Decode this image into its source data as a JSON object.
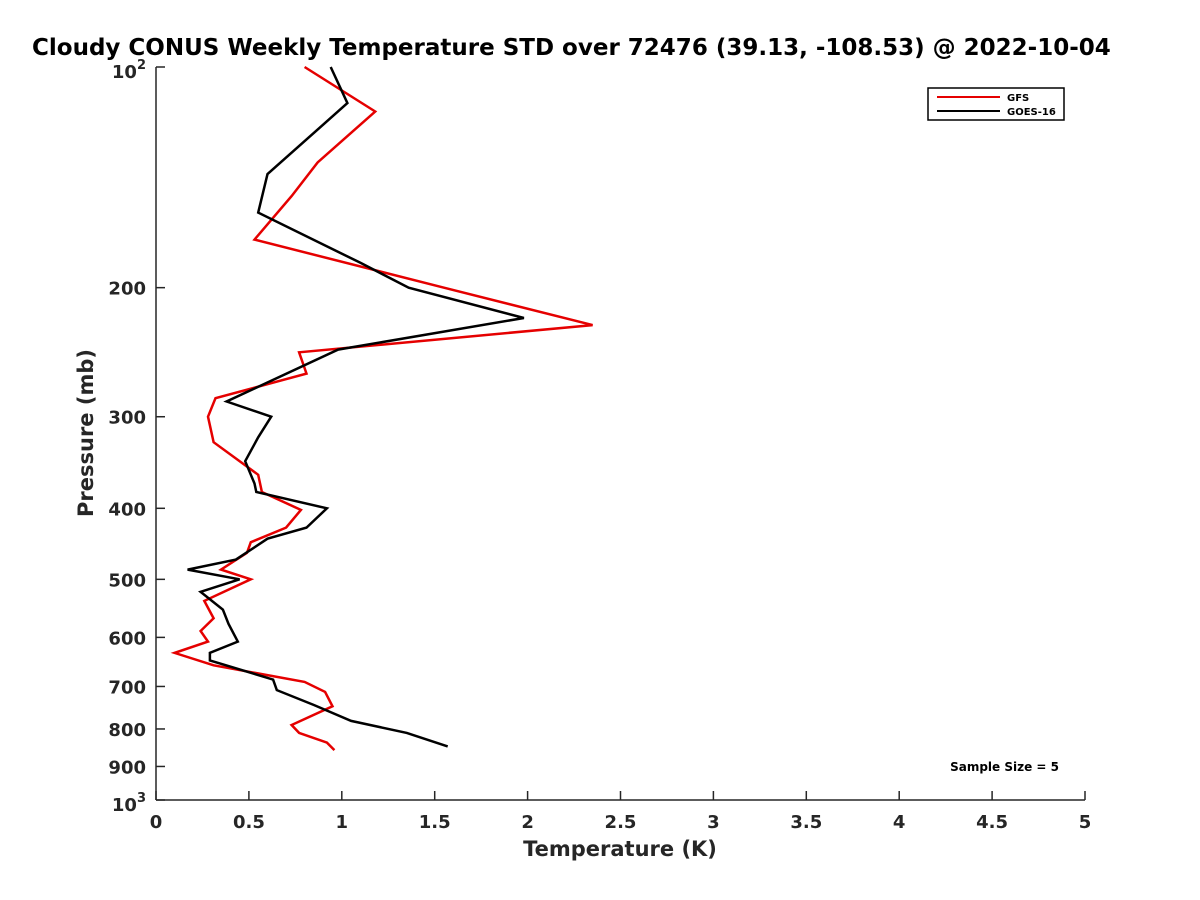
{
  "chart_data": {
    "type": "line",
    "title": "Cloudy CONUS Weekly Temperature STD over 72476 (39.13, -108.53) @ 2022-10-04",
    "xlabel": "Temperature (K)",
    "ylabel": "Pressure (mb)",
    "xlim": [
      0,
      5
    ],
    "ylim": [
      100,
      1000
    ],
    "y_scale": "log",
    "y_reversed": true,
    "grid": false,
    "legend_position": "top-right",
    "x_ticks": [
      {
        "value": 0,
        "label": "0"
      },
      {
        "value": 0.5,
        "label": "0.5"
      },
      {
        "value": 1,
        "label": "1"
      },
      {
        "value": 1.5,
        "label": "1.5"
      },
      {
        "value": 2,
        "label": "2"
      },
      {
        "value": 2.5,
        "label": "2.5"
      },
      {
        "value": 3,
        "label": "3"
      },
      {
        "value": 3.5,
        "label": "3.5"
      },
      {
        "value": 4,
        "label": "4"
      },
      {
        "value": 4.5,
        "label": "4.5"
      },
      {
        "value": 5,
        "label": "5"
      }
    ],
    "y_ticks": [
      {
        "value": 100,
        "base": "10",
        "exp": "2"
      },
      {
        "value": 200,
        "label": "200"
      },
      {
        "value": 300,
        "label": "300"
      },
      {
        "value": 400,
        "label": "400"
      },
      {
        "value": 500,
        "label": "500"
      },
      {
        "value": 600,
        "label": "600"
      },
      {
        "value": 700,
        "label": "700"
      },
      {
        "value": 800,
        "label": "800"
      },
      {
        "value": 900,
        "label": "900"
      },
      {
        "value": 1000,
        "base": "10",
        "exp": "3"
      }
    ],
    "annotation": "Sample Size = 5",
    "series": [
      {
        "name": "GFS",
        "color": "#e50000",
        "points": [
          [
            0.8,
            100
          ],
          [
            1.18,
            115
          ],
          [
            0.87,
            135
          ],
          [
            0.73,
            150
          ],
          [
            0.53,
            172
          ],
          [
            1.55,
            200
          ],
          [
            2.35,
            225
          ],
          [
            0.77,
            245
          ],
          [
            0.81,
            262
          ],
          [
            0.32,
            283
          ],
          [
            0.28,
            300
          ],
          [
            0.31,
            325
          ],
          [
            0.55,
            360
          ],
          [
            0.57,
            380
          ],
          [
            0.78,
            402
          ],
          [
            0.7,
            425
          ],
          [
            0.51,
            445
          ],
          [
            0.49,
            460
          ],
          [
            0.35,
            485
          ],
          [
            0.51,
            500
          ],
          [
            0.26,
            535
          ],
          [
            0.31,
            565
          ],
          [
            0.24,
            588
          ],
          [
            0.28,
            608
          ],
          [
            0.1,
            630
          ],
          [
            0.31,
            655
          ],
          [
            0.8,
            690
          ],
          [
            0.91,
            712
          ],
          [
            0.95,
            745
          ],
          [
            0.73,
            790
          ],
          [
            0.77,
            810
          ],
          [
            0.92,
            835
          ],
          [
            0.96,
            855
          ]
        ]
      },
      {
        "name": "GOES-16",
        "color": "#000000",
        "points": [
          [
            0.94,
            100
          ],
          [
            1.03,
            112
          ],
          [
            0.6,
            140
          ],
          [
            0.55,
            158
          ],
          [
            1.1,
            185
          ],
          [
            1.36,
            200
          ],
          [
            1.98,
            220
          ],
          [
            0.98,
            243
          ],
          [
            0.38,
            286
          ],
          [
            0.62,
            300
          ],
          [
            0.55,
            320
          ],
          [
            0.48,
            345
          ],
          [
            0.53,
            370
          ],
          [
            0.54,
            380
          ],
          [
            0.92,
            400
          ],
          [
            0.81,
            425
          ],
          [
            0.6,
            440
          ],
          [
            0.43,
            470
          ],
          [
            0.17,
            485
          ],
          [
            0.45,
            500
          ],
          [
            0.24,
            520
          ],
          [
            0.36,
            550
          ],
          [
            0.39,
            575
          ],
          [
            0.44,
            608
          ],
          [
            0.29,
            630
          ],
          [
            0.29,
            645
          ],
          [
            0.63,
            685
          ],
          [
            0.65,
            708
          ],
          [
            0.85,
            742
          ],
          [
            1.05,
            780
          ],
          [
            1.35,
            810
          ],
          [
            1.57,
            845
          ]
        ]
      }
    ]
  }
}
